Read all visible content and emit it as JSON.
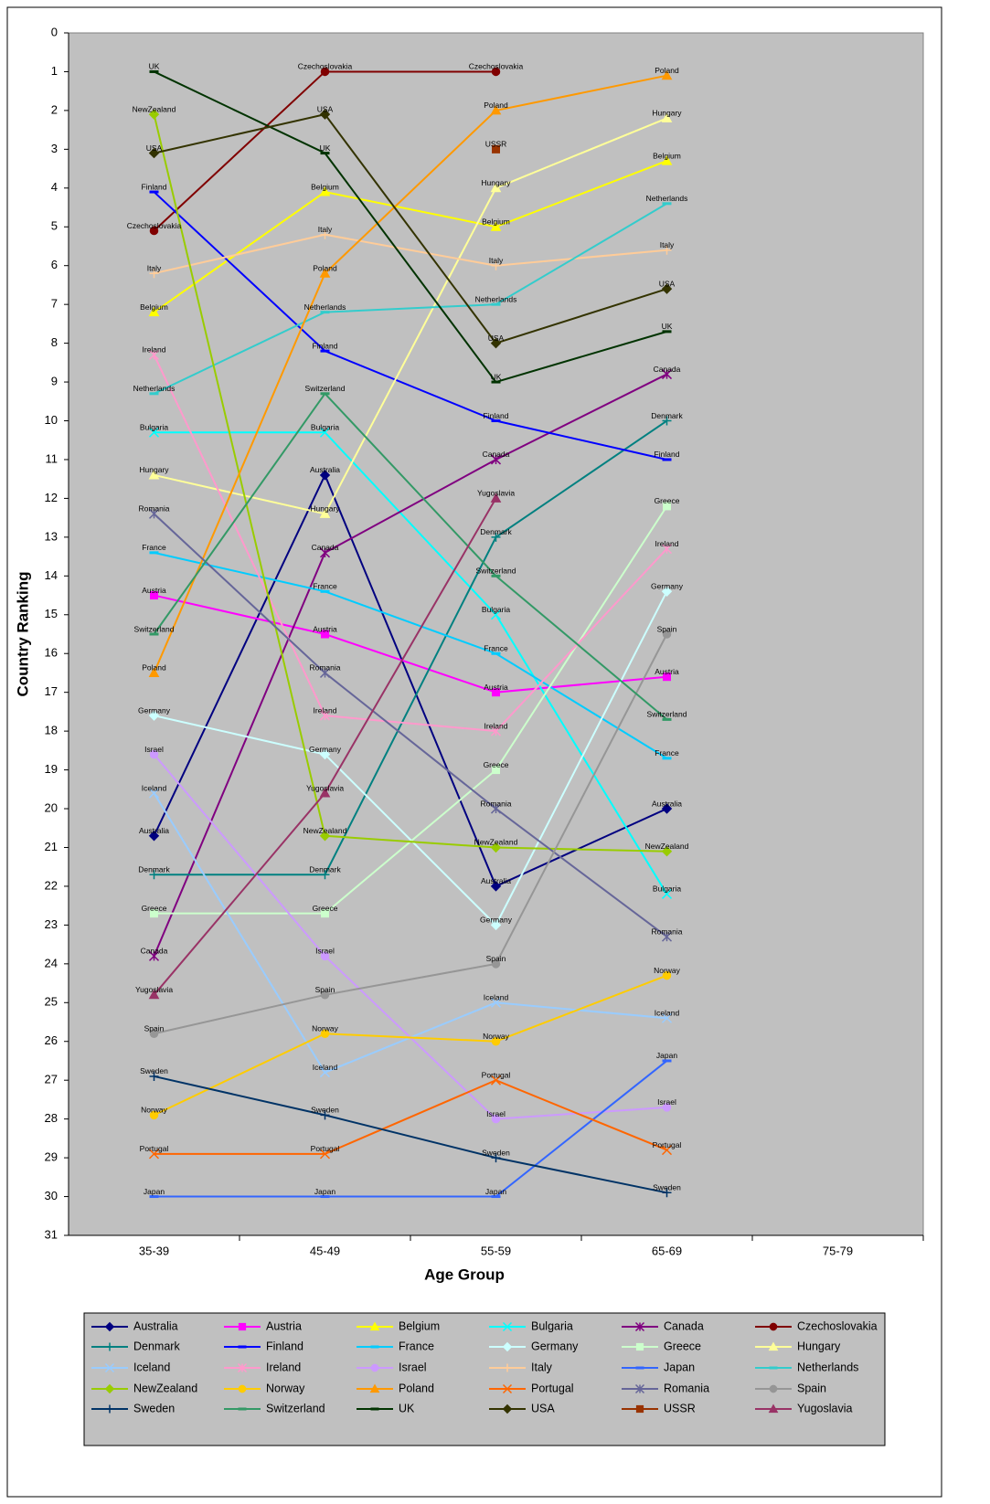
{
  "chart_data": {
    "type": "line",
    "y_axis_label": "Country Ranking",
    "x_axis_label": "Age Group",
    "categories": [
      "35-39",
      "45-49",
      "55-59",
      "65-69",
      "75-79"
    ],
    "ylim": [
      0,
      31
    ],
    "y_inverted": true,
    "yticks": [
      0,
      1,
      2,
      3,
      4,
      5,
      6,
      7,
      8,
      9,
      10,
      11,
      12,
      13,
      14,
      15,
      16,
      17,
      18,
      19,
      20,
      21,
      22,
      23,
      24,
      25,
      26,
      27,
      28,
      29,
      30,
      31
    ],
    "grid": false,
    "data_labels": "series_name",
    "series": [
      {
        "name": "Australia",
        "color": "#000080",
        "marker": "diamond",
        "values": [
          20.7,
          11.4,
          22.0,
          20.0,
          null
        ]
      },
      {
        "name": "Austria",
        "color": "#ff00ff",
        "marker": "square",
        "values": [
          14.5,
          15.5,
          17.0,
          16.6,
          null
        ]
      },
      {
        "name": "Belgium",
        "color": "#ffff00",
        "marker": "triangle",
        "values": [
          7.2,
          4.1,
          5.0,
          3.3,
          null
        ]
      },
      {
        "name": "Bulgaria",
        "color": "#00ffff",
        "marker": "x",
        "values": [
          10.3,
          10.3,
          15.0,
          22.2,
          null
        ]
      },
      {
        "name": "Canada",
        "color": "#800080",
        "marker": "star",
        "values": [
          23.8,
          13.4,
          11.0,
          8.8,
          null
        ]
      },
      {
        "name": "Czechoslovakia",
        "color": "#800000",
        "marker": "circle",
        "values": [
          5.1,
          1.0,
          1.0,
          null,
          null
        ]
      },
      {
        "name": "Denmark",
        "color": "#008080",
        "marker": "plus",
        "values": [
          21.7,
          21.7,
          13.0,
          10.0,
          null
        ]
      },
      {
        "name": "Finland",
        "color": "#0000ff",
        "marker": "dash",
        "values": [
          4.1,
          8.2,
          10.0,
          11.0,
          null
        ]
      },
      {
        "name": "France",
        "color": "#00ccff",
        "marker": "dash",
        "values": [
          13.4,
          14.4,
          16.0,
          18.7,
          null
        ]
      },
      {
        "name": "Germany",
        "color": "#ccffff",
        "marker": "diamond",
        "values": [
          17.6,
          18.6,
          23.0,
          14.4,
          null
        ]
      },
      {
        "name": "Greece",
        "color": "#ccffcc",
        "marker": "square",
        "values": [
          22.7,
          22.7,
          19.0,
          12.2,
          null
        ]
      },
      {
        "name": "Hungary",
        "color": "#ffff99",
        "marker": "triangle",
        "values": [
          11.4,
          12.4,
          4.0,
          2.2,
          null
        ]
      },
      {
        "name": "Iceland",
        "color": "#99ccff",
        "marker": "x",
        "values": [
          19.6,
          26.8,
          25.0,
          25.4,
          null
        ]
      },
      {
        "name": "Ireland",
        "color": "#ff99cc",
        "marker": "star",
        "values": [
          8.3,
          17.6,
          18.0,
          13.3,
          null
        ]
      },
      {
        "name": "Israel",
        "color": "#cc99ff",
        "marker": "circle",
        "values": [
          18.6,
          23.8,
          28.0,
          27.7,
          null
        ]
      },
      {
        "name": "Italy",
        "color": "#ffcc99",
        "marker": "plus",
        "values": [
          6.2,
          5.2,
          6.0,
          5.6,
          null
        ]
      },
      {
        "name": "Japan",
        "color": "#3366ff",
        "marker": "dash",
        "values": [
          30.0,
          30.0,
          30.0,
          26.5,
          null
        ]
      },
      {
        "name": "Netherlands",
        "color": "#33cccc",
        "marker": "dash",
        "values": [
          9.3,
          7.2,
          7.0,
          4.4,
          null
        ]
      },
      {
        "name": "NewZealand",
        "color": "#99cc00",
        "marker": "diamond",
        "values": [
          2.1,
          20.7,
          21.0,
          21.1,
          null
        ]
      },
      {
        "name": "Norway",
        "color": "#ffcc00",
        "marker": "circle",
        "values": [
          27.9,
          25.8,
          26.0,
          24.3,
          null
        ]
      },
      {
        "name": "Poland",
        "color": "#ff9900",
        "marker": "triangle",
        "values": [
          16.5,
          6.2,
          2.0,
          1.1,
          null
        ]
      },
      {
        "name": "Portugal",
        "color": "#ff6600",
        "marker": "x",
        "values": [
          28.9,
          28.9,
          27.0,
          28.8,
          null
        ]
      },
      {
        "name": "Romania",
        "color": "#666699",
        "marker": "star",
        "values": [
          12.4,
          16.5,
          20.0,
          23.3,
          null
        ]
      },
      {
        "name": "Spain",
        "color": "#969696",
        "marker": "circle",
        "values": [
          25.8,
          24.8,
          24.0,
          15.5,
          null
        ]
      },
      {
        "name": "Sweden",
        "color": "#003366",
        "marker": "plus",
        "values": [
          26.9,
          27.9,
          29.0,
          29.9,
          null
        ]
      },
      {
        "name": "Switzerland",
        "color": "#339966",
        "marker": "dash",
        "values": [
          15.5,
          9.3,
          14.0,
          17.7,
          null
        ]
      },
      {
        "name": "UK",
        "color": "#003300",
        "marker": "dash",
        "values": [
          1.0,
          3.1,
          9.0,
          7.7,
          null
        ]
      },
      {
        "name": "USA",
        "color": "#333300",
        "marker": "diamond",
        "values": [
          3.1,
          2.1,
          8.0,
          6.6,
          null
        ]
      },
      {
        "name": "USSR",
        "color": "#993300",
        "marker": "square",
        "values": [
          null,
          null,
          3.0,
          null,
          null
        ]
      },
      {
        "name": "Yugoslavia",
        "color": "#993366",
        "marker": "triangle",
        "values": [
          24.8,
          19.6,
          12.0,
          null,
          null
        ]
      }
    ]
  }
}
